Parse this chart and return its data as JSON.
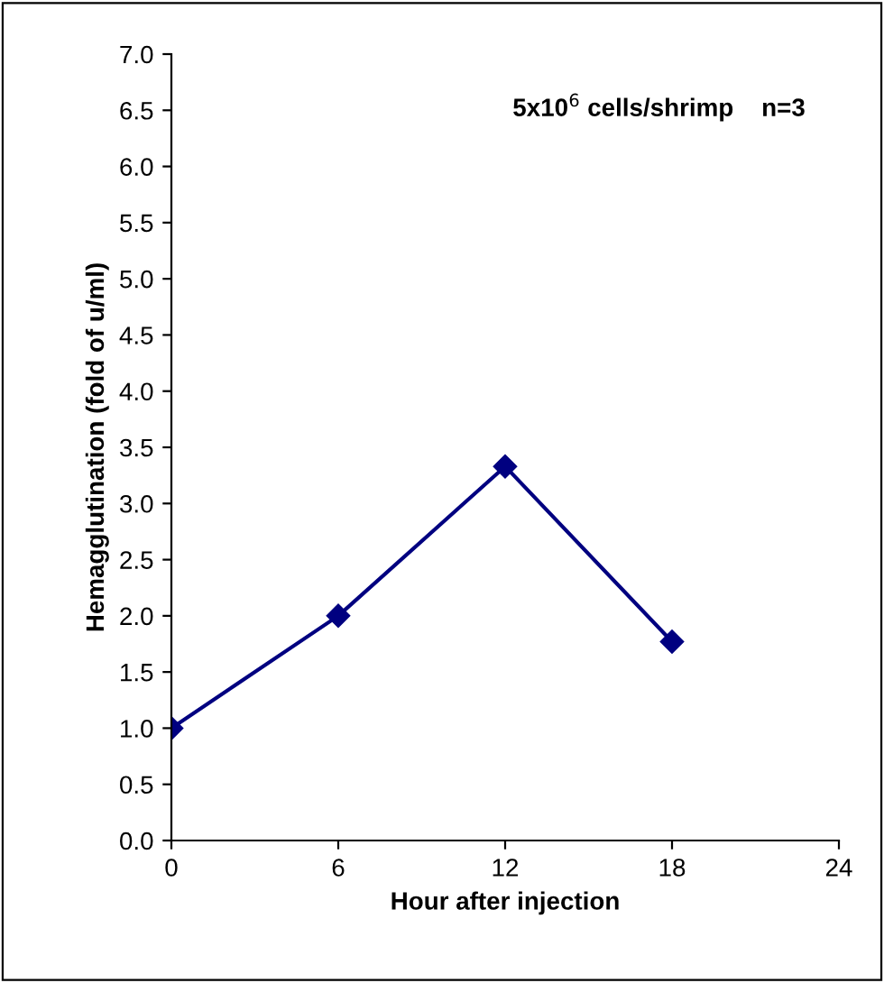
{
  "chart_data": {
    "type": "line",
    "xlabel": "Hour after injection",
    "ylabel": "Hemagglutination (fold of u/ml)",
    "annotations": [
      "5x10$^{6}$ cells/shrimp    n=3"
    ],
    "x": [
      0,
      6,
      12,
      18
    ],
    "series": [
      {
        "color": "#000080",
        "values": [
          1.0,
          2.0,
          3.33,
          1.77
        ]
      }
    ],
    "xlim": [
      0,
      24
    ],
    "xticks": [
      0,
      6,
      12,
      18,
      24
    ],
    "ylim": [
      0,
      7
    ],
    "yticks": [
      {
        "value": 0,
        "label": "0.0"
      },
      0.5,
      {
        "value": 1,
        "label": "1.0"
      },
      1.5,
      {
        "value": 2,
        "label": "2.0"
      },
      2.5,
      {
        "value": 3,
        "label": "3.0"
      },
      3.5,
      {
        "value": 4,
        "label": "4.0"
      },
      4.5,
      {
        "value": 5,
        "label": "5.0"
      },
      5.5,
      {
        "value": 6,
        "label": "6.0"
      },
      6.5,
      {
        "value": 7,
        "label": "7.0"
      }
    ],
    "grid": false,
    "marker": "diamond",
    "line_style": "solid"
  }
}
